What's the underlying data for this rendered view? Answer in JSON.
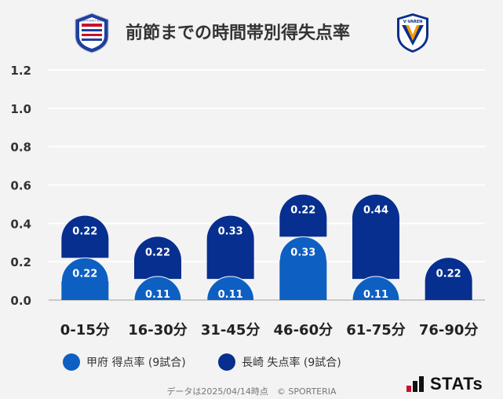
{
  "header": {
    "title": "前節までの時間帯別得失点率",
    "left_logo_text": "VENTFORET KOFU",
    "right_logo_text": "V·VAREN"
  },
  "legend": {
    "items": [
      {
        "label": "甲府 得点率 (9試合)",
        "color": "#0d5fc2"
      },
      {
        "label": "長崎 失点率 (9試合)",
        "color": "#062f8f"
      }
    ]
  },
  "footer": {
    "note": "データは2025/04/14時点　© SPORTERIA",
    "brand": "STATs"
  },
  "chart_data": {
    "type": "bar",
    "stacked": true,
    "categories": [
      "0-15分",
      "16-30分",
      "31-45分",
      "46-60分",
      "61-75分",
      "76-90分"
    ],
    "series": [
      {
        "name": "甲府 得点率 (9試合)",
        "color": "#0d5fc2",
        "values": [
          0.22,
          0.11,
          0.11,
          0.33,
          0.11,
          0.0
        ],
        "labels": [
          "0.22",
          "0.11",
          "0.11",
          "0.33",
          "0.11",
          ""
        ]
      },
      {
        "name": "長崎 失点率 (9試合)",
        "color": "#062f8f",
        "values": [
          0.22,
          0.22,
          0.33,
          0.22,
          0.44,
          0.22
        ],
        "labels": [
          "0.22",
          "0.22",
          "0.33",
          "0.22",
          "0.44",
          "0.22"
        ]
      }
    ],
    "yticks": [
      "0.0",
      "0.2",
      "0.4",
      "0.6",
      "0.8",
      "1.0",
      "1.2"
    ],
    "ylim": [
      0,
      1.2
    ],
    "grid": true
  }
}
